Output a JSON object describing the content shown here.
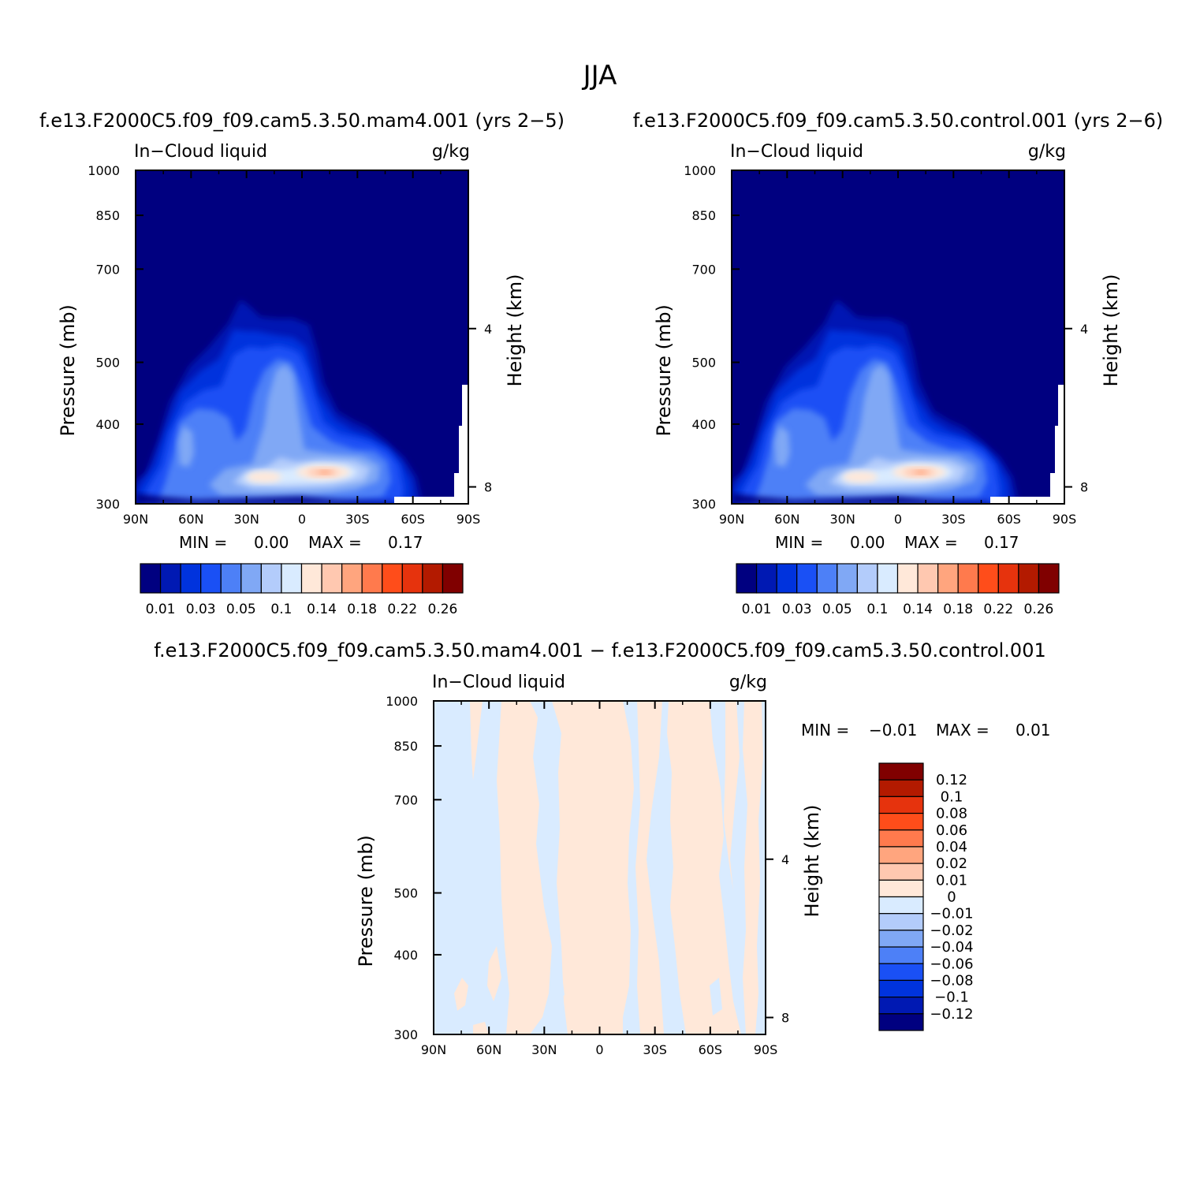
{
  "figure": {
    "title": "JJA",
    "diff_title": "f.e13.F2000C5.f09_f09.cam5.3.50.mam4.001  −  f.e13.F2000C5.f09_f09.cam5.3.50.control.001"
  },
  "colors": {
    "abs_levels": [
      "#000080",
      "#0019b3",
      "#0033dd",
      "#1a50f5",
      "#4d80f7",
      "#80a8f5",
      "#b3ccfb",
      "#d9ebff",
      "#ffe8d9",
      "#ffc8b0",
      "#ffa57e",
      "#ff7a4d",
      "#ff4d1a",
      "#e6330d",
      "#b31a00",
      "#800000"
    ],
    "diff_levels": [
      "#000080",
      "#0019b3",
      "#0033dd",
      "#1a50f5",
      "#4d80f7",
      "#80a8f5",
      "#b3ccfb",
      "#d9ebff",
      "#ffe8d9",
      "#ffc8b0",
      "#ffa57e",
      "#ff7a4d",
      "#ff4d1a",
      "#e6330d",
      "#b31a00",
      "#800000"
    ]
  },
  "chart_data": [
    {
      "type": "heatmap",
      "panel": "left",
      "title": "f.e13.F2000C5.f09_f09.cam5.3.50.mam4.001  (yrs 2−5)",
      "left_label": "In−Cloud liquid",
      "right_label": "g/kg",
      "ylabel": "Pressure (mb)",
      "y2label": "Height (km)",
      "x_ticks": [
        "90N",
        "60N",
        "30N",
        "0",
        "30S",
        "60S",
        "90S"
      ],
      "y_ticks": [
        "300",
        "400",
        "500",
        "700",
        "850",
        "1000"
      ],
      "y2_ticks": [
        "8",
        "4"
      ],
      "ylim": [
        1000,
        300
      ],
      "y_scale": "log",
      "min_label": "MIN =",
      "min_value": "0.00",
      "max_label": "MAX =",
      "max_value": "0.17",
      "colorbar": {
        "orientation": "horizontal",
        "tick_labels": [
          "0.01",
          "0.03",
          "0.05",
          "0.1",
          "0.14",
          "0.18",
          "0.22",
          "0.26"
        ]
      }
    },
    {
      "type": "heatmap",
      "panel": "right",
      "title": "f.e13.F2000C5.f09_f09.cam5.3.50.control.001  (yrs 2−6)",
      "left_label": "In−Cloud liquid",
      "right_label": "g/kg",
      "ylabel": "Pressure (mb)",
      "y2label": "Height (km)",
      "x_ticks": [
        "90N",
        "60N",
        "30N",
        "0",
        "30S",
        "60S",
        "90S"
      ],
      "y_ticks": [
        "300",
        "400",
        "500",
        "700",
        "850",
        "1000"
      ],
      "y2_ticks": [
        "8",
        "4"
      ],
      "ylim": [
        1000,
        300
      ],
      "y_scale": "log",
      "min_label": "MIN =",
      "min_value": "0.00",
      "max_label": "MAX =",
      "max_value": "0.17",
      "colorbar": {
        "orientation": "horizontal",
        "tick_labels": [
          "0.01",
          "0.03",
          "0.05",
          "0.1",
          "0.14",
          "0.18",
          "0.22",
          "0.26"
        ]
      }
    },
    {
      "type": "heatmap",
      "panel": "difference",
      "left_label": "In−Cloud liquid",
      "right_label": "g/kg",
      "ylabel": "Pressure (mb)",
      "y2label": "Height (km)",
      "x_ticks": [
        "90N",
        "60N",
        "30N",
        "0",
        "30S",
        "60S",
        "90S"
      ],
      "y_ticks": [
        "300",
        "400",
        "500",
        "700",
        "850",
        "1000"
      ],
      "y2_ticks": [
        "8",
        "4"
      ],
      "ylim": [
        1000,
        300
      ],
      "y_scale": "log",
      "min_label": "MIN =",
      "min_value": "−0.01",
      "max_label": "MAX =",
      "max_value": "0.01",
      "colorbar": {
        "orientation": "vertical",
        "tick_labels": [
          "0.12",
          "0.1",
          "0.08",
          "0.06",
          "0.04",
          "0.02",
          "0.01",
          "0",
          "−0.01",
          "−0.02",
          "−0.04",
          "−0.06",
          "−0.08",
          "−0.1",
          "−0.12"
        ]
      }
    }
  ]
}
